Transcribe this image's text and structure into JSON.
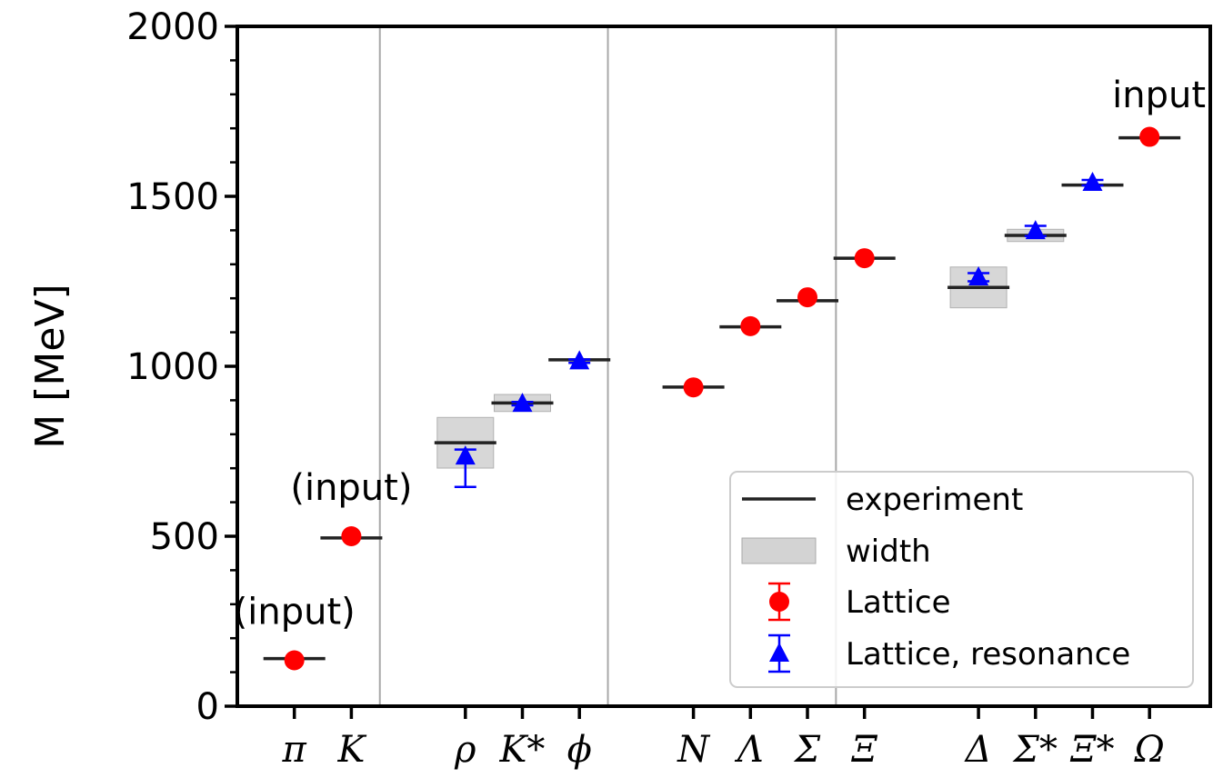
{
  "chart_data": {
    "type": "scatter",
    "ylabel": "M [MeV]",
    "ylim": [
      0,
      2000
    ],
    "y_ticks": [
      "0",
      "500",
      "1000",
      "1500",
      "2000"
    ],
    "y_tick_values": [
      0,
      500,
      1000,
      1500,
      2000
    ],
    "grid": false,
    "categories": [
      "π",
      "K",
      "ρ",
      "K*",
      "ϕ",
      "N",
      "Λ",
      "Σ",
      "Ξ",
      "Δ",
      "Σ*",
      "Ξ*",
      "Ω"
    ],
    "category_slots": [
      1,
      2,
      4,
      5,
      6,
      8,
      9,
      10,
      11,
      13,
      14,
      15,
      16
    ],
    "group_separators_after_slot": [
      2.5,
      6.5,
      10.5
    ],
    "experiment": [
      {
        "particle": "π",
        "mass": 140
      },
      {
        "particle": "K",
        "mass": 495
      },
      {
        "particle": "ρ",
        "mass": 775,
        "width": 149
      },
      {
        "particle": "K*",
        "mass": 892,
        "width": 50
      },
      {
        "particle": "ϕ",
        "mass": 1019
      },
      {
        "particle": "N",
        "mass": 939
      },
      {
        "particle": "Λ",
        "mass": 1116
      },
      {
        "particle": "Σ",
        "mass": 1193
      },
      {
        "particle": "Ξ",
        "mass": 1318
      },
      {
        "particle": "Δ",
        "mass": 1232,
        "width": 120
      },
      {
        "particle": "Σ*",
        "mass": 1385,
        "width": 36
      },
      {
        "particle": "Ξ*",
        "mass": 1533
      },
      {
        "particle": "Ω",
        "mass": 1672
      }
    ],
    "series": [
      {
        "name": "Lattice",
        "marker": "circle",
        "color": "#ff0000",
        "points": [
          {
            "particle": "π",
            "y": 135,
            "err_low": 0,
            "err_high": 0
          },
          {
            "particle": "K",
            "y": 500,
            "err_low": 0,
            "err_high": 0
          },
          {
            "particle": "N",
            "y": 938,
            "err_low": 0,
            "err_high": 0
          },
          {
            "particle": "Λ",
            "y": 1118,
            "err_low": 0,
            "err_high": 0
          },
          {
            "particle": "Σ",
            "y": 1203,
            "err_low": 0,
            "err_high": 0
          },
          {
            "particle": "Ξ",
            "y": 1318,
            "err_low": 0,
            "err_high": 0
          },
          {
            "particle": "Ω",
            "y": 1675,
            "err_low": 0,
            "err_high": 0
          }
        ]
      },
      {
        "name": "Lattice, resonance",
        "marker": "triangle",
        "color": "#0000ff",
        "points": [
          {
            "particle": "ρ",
            "y": 735,
            "err_low": 90,
            "err_high": 20
          },
          {
            "particle": "K*",
            "y": 890,
            "err_low": 5,
            "err_high": 5
          },
          {
            "particle": "ϕ",
            "y": 1015,
            "err_low": 5,
            "err_high": 5
          },
          {
            "particle": "Δ",
            "y": 1262,
            "err_low": 12,
            "err_high": 12
          },
          {
            "particle": "Σ*",
            "y": 1398,
            "err_low": 15,
            "err_high": 15
          },
          {
            "particle": "Ξ*",
            "y": 1540,
            "err_low": 8,
            "err_high": 8
          }
        ]
      }
    ],
    "annotations": [
      {
        "text": "(input)",
        "particle": "π",
        "y": 280
      },
      {
        "text": "(input)",
        "particle": "K",
        "y": 645
      },
      {
        "text": "input",
        "particle": "Ω",
        "y": 1800
      }
    ],
    "legend": {
      "position": "lower-right",
      "entries": [
        "experiment",
        "width",
        "Lattice",
        "Lattice, resonance"
      ],
      "colors": {
        "experiment": "#000000",
        "width": "#d3d3d3",
        "Lattice": "#ff0000",
        "Lattice, resonance": "#0000ff"
      }
    }
  }
}
